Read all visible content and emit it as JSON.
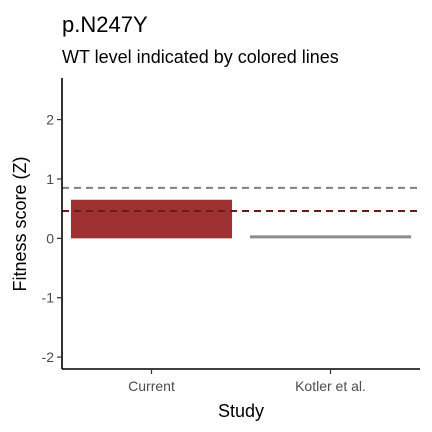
{
  "chart_data": {
    "type": "bar",
    "title": "p.N247Y",
    "subtitle": "WT level indicated by colored lines",
    "xlabel": "Study",
    "ylabel": "Fitness score (Z)",
    "categories": [
      "Current",
      "Kotler et al."
    ],
    "values": [
      0.65,
      0.05
    ],
    "colors": [
      "#9e3232",
      "#8c8c8c"
    ],
    "reference_lines": [
      {
        "study": "Kotler et al.",
        "value": 0.85,
        "color": "#7f7f7f",
        "style": "dashed"
      },
      {
        "study": "Current",
        "value": 0.46,
        "color": "#6b1a1a",
        "style": "dashed"
      }
    ],
    "ylim": [
      -2.2,
      2.7
    ],
    "yticks": [
      -2,
      -1,
      0,
      1,
      2
    ],
    "ytick_labels": [
      "-2",
      "-1",
      "0",
      "1",
      "2"
    ],
    "grid": false,
    "legend": "none"
  }
}
